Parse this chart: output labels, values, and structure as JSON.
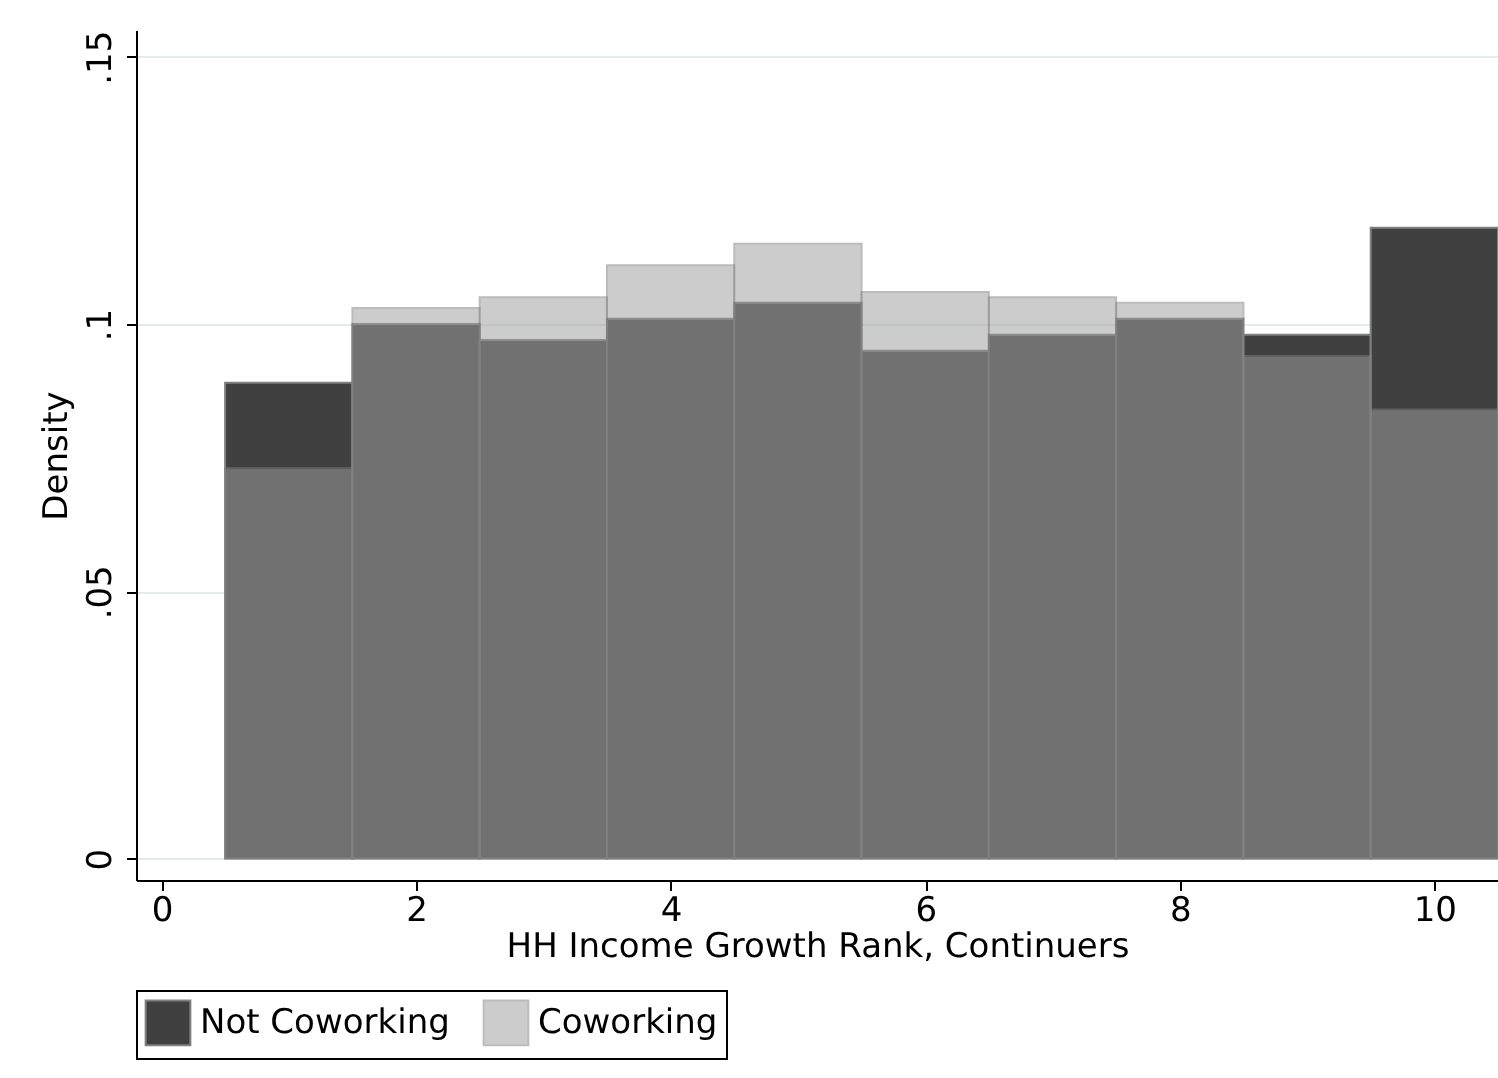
{
  "chart_data": {
    "type": "histogram",
    "xlabel": "HH Income Growth Rank, Continuers",
    "ylabel": "Density",
    "bins": [
      0.5,
      1.5,
      2.5,
      3.5,
      4.5,
      5.5,
      6.5,
      7.5,
      8.5,
      9.5,
      10.5
    ],
    "series": [
      {
        "name": "Not Coworking",
        "color": "#404040",
        "values": [
          0.089,
          0.1,
          0.097,
          0.101,
          0.104,
          0.095,
          0.098,
          0.101,
          0.098,
          0.118
        ]
      },
      {
        "name": "Coworking",
        "color": "#9e9e9e",
        "values": [
          0.073,
          0.103,
          0.105,
          0.111,
          0.115,
          0.106,
          0.105,
          0.104,
          0.094,
          0.084
        ]
      }
    ],
    "xlim": [
      -0.2,
      10.5
    ],
    "xticks": [
      0,
      2,
      4,
      6,
      8,
      10
    ],
    "ylim": [
      -0.004,
      0.155
    ],
    "yticks": [
      0,
      {
        "value": 0.05,
        "label": ".05"
      },
      {
        "value": 0.1,
        "label": ".1"
      },
      {
        "value": 0.15,
        "label": ".15"
      }
    ],
    "grid": "y",
    "legend": "bottom"
  }
}
